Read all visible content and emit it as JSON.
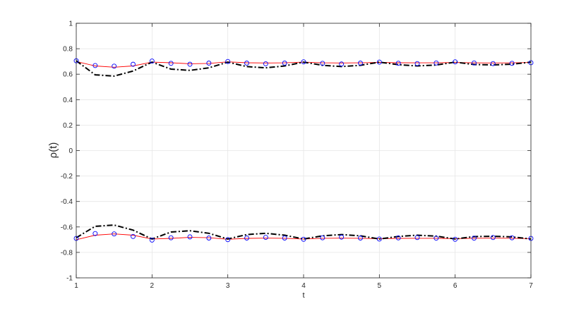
{
  "chart_data": {
    "type": "line",
    "title": "",
    "xlabel": "t",
    "ylabel": "ρ(t)",
    "xlim": [
      1,
      7
    ],
    "ylim": [
      -1,
      1
    ],
    "xticks": [
      1,
      2,
      3,
      4,
      5,
      6,
      7
    ],
    "yticks": [
      -1,
      -0.8,
      -0.6,
      -0.4,
      -0.2,
      0,
      0.2,
      0.4,
      0.6,
      0.8,
      1
    ],
    "grid": true,
    "legend": "none",
    "colors": {
      "red": "#ff0000",
      "black": "#000000",
      "blue": "#0000ff"
    },
    "series": [
      {
        "style": "red-solid",
        "x": [
          1,
          1.25,
          1.5,
          1.75,
          2,
          2.25,
          2.5,
          2.75,
          3,
          3.25,
          3.5,
          3.75,
          4,
          4.25,
          4.5,
          4.75,
          5,
          5.25,
          5.5,
          5.75,
          6,
          6.25,
          6.5,
          6.75,
          7
        ],
        "values": [
          0.7,
          0.665,
          0.655,
          0.665,
          0.695,
          0.69,
          0.682,
          0.685,
          0.697,
          0.69,
          0.688,
          0.689,
          0.695,
          0.689,
          0.688,
          0.689,
          0.693,
          0.69,
          0.689,
          0.689,
          0.692,
          0.689,
          0.688,
          0.689,
          0.692
        ]
      },
      {
        "style": "black-dashdot",
        "x": [
          1,
          1.25,
          1.5,
          1.75,
          2,
          2.25,
          2.5,
          2.75,
          3,
          3.25,
          3.5,
          3.75,
          4,
          4.25,
          4.5,
          4.75,
          5,
          5.25,
          5.5,
          5.75,
          6,
          6.25,
          6.5,
          6.75,
          7
        ],
        "values": [
          0.705,
          0.595,
          0.585,
          0.625,
          0.695,
          0.64,
          0.63,
          0.65,
          0.695,
          0.66,
          0.65,
          0.665,
          0.695,
          0.67,
          0.66,
          0.67,
          0.695,
          0.675,
          0.665,
          0.672,
          0.695,
          0.676,
          0.673,
          0.678,
          0.695
        ]
      },
      {
        "style": "blue-circles",
        "x": [
          1,
          1.25,
          1.5,
          1.75,
          2,
          2.25,
          2.5,
          2.75,
          3,
          3.25,
          3.5,
          3.75,
          4,
          4.25,
          4.5,
          4.75,
          5,
          5.25,
          5.5,
          5.75,
          6,
          6.25,
          6.5,
          6.75,
          7
        ],
        "values": [
          0.705,
          0.668,
          0.663,
          0.678,
          0.703,
          0.685,
          0.678,
          0.687,
          0.7,
          0.687,
          0.682,
          0.687,
          0.697,
          0.685,
          0.68,
          0.687,
          0.695,
          0.686,
          0.683,
          0.688,
          0.697,
          0.688,
          0.683,
          0.685,
          0.69
        ]
      },
      {
        "style": "red-solid",
        "x": [
          1,
          1.25,
          1.5,
          1.75,
          2,
          2.25,
          2.5,
          2.75,
          3,
          3.25,
          3.5,
          3.75,
          4,
          4.25,
          4.5,
          4.75,
          5,
          5.25,
          5.5,
          5.75,
          6,
          6.25,
          6.5,
          6.75,
          7
        ],
        "values": [
          -0.7,
          -0.665,
          -0.655,
          -0.665,
          -0.695,
          -0.69,
          -0.682,
          -0.685,
          -0.697,
          -0.69,
          -0.688,
          -0.689,
          -0.695,
          -0.689,
          -0.688,
          -0.689,
          -0.693,
          -0.69,
          -0.689,
          -0.689,
          -0.692,
          -0.689,
          -0.688,
          -0.689,
          -0.692
        ]
      },
      {
        "style": "black-dashdot",
        "x": [
          1,
          1.25,
          1.5,
          1.75,
          2,
          2.25,
          2.5,
          2.75,
          3,
          3.25,
          3.5,
          3.75,
          4,
          4.25,
          4.5,
          4.75,
          5,
          5.25,
          5.5,
          5.75,
          6,
          6.25,
          6.5,
          6.75,
          7
        ],
        "values": [
          -0.685,
          -0.595,
          -0.585,
          -0.625,
          -0.695,
          -0.64,
          -0.63,
          -0.65,
          -0.695,
          -0.66,
          -0.65,
          -0.665,
          -0.695,
          -0.67,
          -0.66,
          -0.67,
          -0.695,
          -0.675,
          -0.665,
          -0.672,
          -0.695,
          -0.676,
          -0.673,
          -0.678,
          -0.695
        ]
      },
      {
        "style": "blue-circles",
        "x": [
          1,
          1.25,
          1.5,
          1.75,
          2,
          2.25,
          2.5,
          2.75,
          3,
          3.25,
          3.5,
          3.75,
          4,
          4.25,
          4.5,
          4.75,
          5,
          5.25,
          5.5,
          5.75,
          6,
          6.25,
          6.5,
          6.75,
          7
        ],
        "values": [
          -0.69,
          -0.652,
          -0.655,
          -0.675,
          -0.703,
          -0.685,
          -0.678,
          -0.687,
          -0.7,
          -0.687,
          -0.682,
          -0.687,
          -0.697,
          -0.685,
          -0.68,
          -0.687,
          -0.695,
          -0.686,
          -0.683,
          -0.688,
          -0.697,
          -0.688,
          -0.683,
          -0.685,
          -0.69
        ]
      }
    ]
  }
}
